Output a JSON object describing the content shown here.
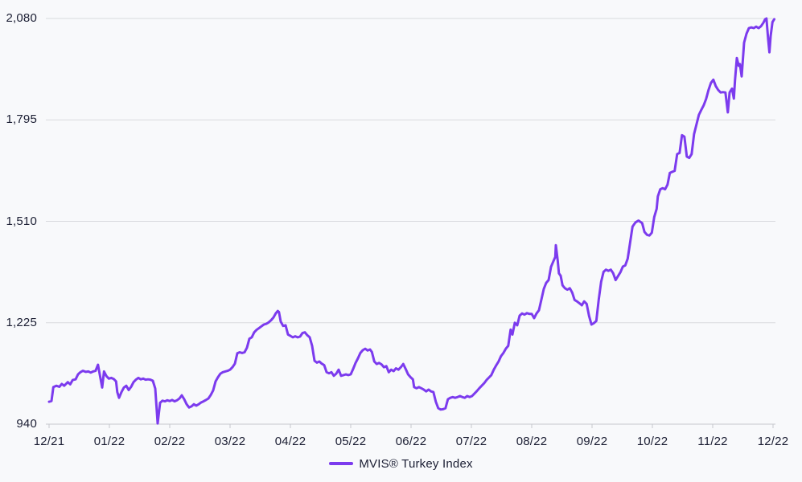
{
  "colors": {
    "line": "#7c3bee",
    "grid": "#d9dade",
    "axis": "#c6c8cc",
    "text": "#1b1e33",
    "background": "#f8f9fb"
  },
  "chart_data": {
    "type": "line",
    "title": "",
    "x_axis": {
      "tick_labels": [
        "12/21",
        "01/22",
        "02/22",
        "03/22",
        "04/22",
        "05/22",
        "06/22",
        "07/22",
        "08/22",
        "09/22",
        "10/22",
        "11/22",
        "12/22"
      ],
      "unit": "month"
    },
    "y_axis": {
      "ticks": [
        940,
        1225,
        1510,
        1795,
        2080
      ],
      "tick_labels": [
        "940",
        "1,225",
        "1,510",
        "1,795",
        "2,080"
      ],
      "range": [
        940,
        2080
      ]
    },
    "grid": {
      "horizontal": true,
      "vertical": false
    },
    "legend": {
      "position": "bottom-center",
      "items": [
        {
          "label": "MVIS® Turkey Index",
          "color": "#7c3bee"
        }
      ]
    },
    "series": [
      {
        "name": "MVIS® Turkey Index",
        "color": "#7c3bee",
        "points": [
          [
            0,
            1003
          ],
          [
            0.04,
            1005
          ],
          [
            0.07,
            1044
          ],
          [
            0.12,
            1048
          ],
          [
            0.17,
            1045
          ],
          [
            0.21,
            1053
          ],
          [
            0.25,
            1048
          ],
          [
            0.31,
            1058
          ],
          [
            0.35,
            1052
          ],
          [
            0.39,
            1064
          ],
          [
            0.44,
            1066
          ],
          [
            0.48,
            1080
          ],
          [
            0.52,
            1086
          ],
          [
            0.56,
            1090
          ],
          [
            0.61,
            1087
          ],
          [
            0.65,
            1088
          ],
          [
            0.69,
            1085
          ],
          [
            0.73,
            1088
          ],
          [
            0.77,
            1090
          ],
          [
            0.81,
            1107
          ],
          [
            0.85,
            1070
          ],
          [
            0.88,
            1043
          ],
          [
            0.91,
            1088
          ],
          [
            0.95,
            1075
          ],
          [
            0.99,
            1068
          ],
          [
            1.03,
            1070
          ],
          [
            1.07,
            1067
          ],
          [
            1.11,
            1060
          ],
          [
            1.13,
            1030
          ],
          [
            1.16,
            1014
          ],
          [
            1.2,
            1030
          ],
          [
            1.24,
            1043
          ],
          [
            1.28,
            1048
          ],
          [
            1.32,
            1036
          ],
          [
            1.36,
            1045
          ],
          [
            1.4,
            1058
          ],
          [
            1.44,
            1065
          ],
          [
            1.48,
            1070
          ],
          [
            1.52,
            1066
          ],
          [
            1.56,
            1068
          ],
          [
            1.6,
            1065
          ],
          [
            1.64,
            1066
          ],
          [
            1.68,
            1065
          ],
          [
            1.72,
            1062
          ],
          [
            1.76,
            1040
          ],
          [
            1.8,
            942
          ],
          [
            1.84,
            1000
          ],
          [
            1.88,
            1006
          ],
          [
            1.92,
            1004
          ],
          [
            1.96,
            1007
          ],
          [
            2,
            1005
          ],
          [
            2.04,
            1008
          ],
          [
            2.08,
            1004
          ],
          [
            2.12,
            1007
          ],
          [
            2.16,
            1012
          ],
          [
            2.2,
            1021
          ],
          [
            2.24,
            1010
          ],
          [
            2.28,
            996
          ],
          [
            2.32,
            987
          ],
          [
            2.36,
            990
          ],
          [
            2.4,
            996
          ],
          [
            2.44,
            992
          ],
          [
            2.48,
            996
          ],
          [
            2.52,
            1001
          ],
          [
            2.56,
            1004
          ],
          [
            2.6,
            1008
          ],
          [
            2.64,
            1012
          ],
          [
            2.68,
            1022
          ],
          [
            2.72,
            1035
          ],
          [
            2.76,
            1060
          ],
          [
            2.8,
            1072
          ],
          [
            2.84,
            1082
          ],
          [
            2.88,
            1086
          ],
          [
            2.92,
            1088
          ],
          [
            2.96,
            1090
          ],
          [
            3,
            1093
          ],
          [
            3.04,
            1100
          ],
          [
            3.08,
            1110
          ],
          [
            3.12,
            1139
          ],
          [
            3.16,
            1142
          ],
          [
            3.2,
            1140
          ],
          [
            3.24,
            1142
          ],
          [
            3.28,
            1155
          ],
          [
            3.32,
            1180
          ],
          [
            3.36,
            1184
          ],
          [
            3.4,
            1198
          ],
          [
            3.44,
            1205
          ],
          [
            3.48,
            1210
          ],
          [
            3.52,
            1215
          ],
          [
            3.56,
            1220
          ],
          [
            3.6,
            1222
          ],
          [
            3.64,
            1226
          ],
          [
            3.68,
            1232
          ],
          [
            3.72,
            1240
          ],
          [
            3.76,
            1252
          ],
          [
            3.79,
            1258
          ],
          [
            3.81,
            1255
          ],
          [
            3.84,
            1228
          ],
          [
            3.88,
            1216
          ],
          [
            3.92,
            1218
          ],
          [
            3.96,
            1192
          ],
          [
            4,
            1188
          ],
          [
            4.04,
            1184
          ],
          [
            4.08,
            1187
          ],
          [
            4.12,
            1184
          ],
          [
            4.16,
            1186
          ],
          [
            4.2,
            1196
          ],
          [
            4.24,
            1198
          ],
          [
            4.28,
            1190
          ],
          [
            4.32,
            1184
          ],
          [
            4.36,
            1160
          ],
          [
            4.4,
            1118
          ],
          [
            4.44,
            1113
          ],
          [
            4.48,
            1116
          ],
          [
            4.52,
            1110
          ],
          [
            4.56,
            1106
          ],
          [
            4.6,
            1086
          ],
          [
            4.64,
            1083
          ],
          [
            4.68,
            1086
          ],
          [
            4.72,
            1076
          ],
          [
            4.76,
            1082
          ],
          [
            4.8,
            1093
          ],
          [
            4.84,
            1076
          ],
          [
            4.88,
            1078
          ],
          [
            4.92,
            1080
          ],
          [
            4.96,
            1078
          ],
          [
            5,
            1080
          ],
          [
            5.04,
            1095
          ],
          [
            5.08,
            1112
          ],
          [
            5.12,
            1125
          ],
          [
            5.16,
            1140
          ],
          [
            5.2,
            1148
          ],
          [
            5.24,
            1152
          ],
          [
            5.28,
            1147
          ],
          [
            5.32,
            1150
          ],
          [
            5.35,
            1143
          ],
          [
            5.39,
            1116
          ],
          [
            5.43,
            1109
          ],
          [
            5.47,
            1112
          ],
          [
            5.51,
            1108
          ],
          [
            5.55,
            1100
          ],
          [
            5.59,
            1103
          ],
          [
            5.63,
            1086
          ],
          [
            5.67,
            1093
          ],
          [
            5.71,
            1089
          ],
          [
            5.75,
            1097
          ],
          [
            5.79,
            1093
          ],
          [
            5.83,
            1100
          ],
          [
            5.87,
            1109
          ],
          [
            5.91,
            1095
          ],
          [
            5.95,
            1080
          ],
          [
            5.99,
            1072
          ],
          [
            6.03,
            1066
          ],
          [
            6.05,
            1044
          ],
          [
            6.09,
            1041
          ],
          [
            6.13,
            1044
          ],
          [
            6.17,
            1041
          ],
          [
            6.21,
            1037
          ],
          [
            6.25,
            1032
          ],
          [
            6.29,
            1037
          ],
          [
            6.33,
            1032
          ],
          [
            6.37,
            1030
          ],
          [
            6.41,
            1003
          ],
          [
            6.45,
            985
          ],
          [
            6.49,
            981
          ],
          [
            6.53,
            982
          ],
          [
            6.57,
            985
          ],
          [
            6.61,
            1010
          ],
          [
            6.65,
            1014
          ],
          [
            6.69,
            1016
          ],
          [
            6.73,
            1014
          ],
          [
            6.77,
            1016
          ],
          [
            6.81,
            1019
          ],
          [
            6.85,
            1016
          ],
          [
            6.89,
            1014
          ],
          [
            6.93,
            1019
          ],
          [
            6.97,
            1016
          ],
          [
            7.01,
            1019
          ],
          [
            7.05,
            1026
          ],
          [
            7.09,
            1033
          ],
          [
            7.13,
            1041
          ],
          [
            7.17,
            1048
          ],
          [
            7.21,
            1055
          ],
          [
            7.25,
            1064
          ],
          [
            7.29,
            1071
          ],
          [
            7.33,
            1078
          ],
          [
            7.37,
            1093
          ],
          [
            7.41,
            1105
          ],
          [
            7.45,
            1116
          ],
          [
            7.49,
            1131
          ],
          [
            7.53,
            1140
          ],
          [
            7.57,
            1152
          ],
          [
            7.61,
            1160
          ],
          [
            7.65,
            1206
          ],
          [
            7.68,
            1192
          ],
          [
            7.72,
            1225
          ],
          [
            7.76,
            1218
          ],
          [
            7.8,
            1245
          ],
          [
            7.84,
            1251
          ],
          [
            7.88,
            1248
          ],
          [
            7.92,
            1252
          ],
          [
            7.96,
            1250
          ],
          [
            8,
            1250
          ],
          [
            8.04,
            1238
          ],
          [
            8.08,
            1251
          ],
          [
            8.12,
            1260
          ],
          [
            8.16,
            1290
          ],
          [
            8.2,
            1320
          ],
          [
            8.24,
            1337
          ],
          [
            8.28,
            1345
          ],
          [
            8.32,
            1382
          ],
          [
            8.36,
            1398
          ],
          [
            8.39,
            1410
          ],
          [
            8.4,
            1443
          ],
          [
            8.43,
            1400
          ],
          [
            8.45,
            1364
          ],
          [
            8.48,
            1357
          ],
          [
            8.51,
            1330
          ],
          [
            8.55,
            1322
          ],
          [
            8.59,
            1318
          ],
          [
            8.63,
            1322
          ],
          [
            8.67,
            1310
          ],
          [
            8.71,
            1289
          ],
          [
            8.75,
            1285
          ],
          [
            8.79,
            1280
          ],
          [
            8.83,
            1274
          ],
          [
            8.87,
            1285
          ],
          [
            8.91,
            1278
          ],
          [
            8.95,
            1244
          ],
          [
            8.99,
            1220
          ],
          [
            9.03,
            1224
          ],
          [
            9.07,
            1230
          ],
          [
            9.11,
            1290
          ],
          [
            9.15,
            1340
          ],
          [
            9.19,
            1368
          ],
          [
            9.23,
            1374
          ],
          [
            9.27,
            1371
          ],
          [
            9.31,
            1374
          ],
          [
            9.35,
            1364
          ],
          [
            9.39,
            1345
          ],
          [
            9.43,
            1356
          ],
          [
            9.47,
            1367
          ],
          [
            9.51,
            1383
          ],
          [
            9.55,
            1386
          ],
          [
            9.59,
            1405
          ],
          [
            9.63,
            1450
          ],
          [
            9.67,
            1495
          ],
          [
            9.72,
            1507
          ],
          [
            9.77,
            1512
          ],
          [
            9.83,
            1505
          ],
          [
            9.87,
            1480
          ],
          [
            9.91,
            1472
          ],
          [
            9.95,
            1470
          ],
          [
            9.99,
            1478
          ],
          [
            10.03,
            1522
          ],
          [
            10.07,
            1545
          ],
          [
            10.09,
            1580
          ],
          [
            10.13,
            1600
          ],
          [
            10.17,
            1603
          ],
          [
            10.21,
            1600
          ],
          [
            10.25,
            1613
          ],
          [
            10.29,
            1646
          ],
          [
            10.33,
            1649
          ],
          [
            10.37,
            1652
          ],
          [
            10.41,
            1699
          ],
          [
            10.45,
            1702
          ],
          [
            10.49,
            1752
          ],
          [
            10.53,
            1748
          ],
          [
            10.57,
            1692
          ],
          [
            10.61,
            1688
          ],
          [
            10.65,
            1699
          ],
          [
            10.69,
            1755
          ],
          [
            10.73,
            1782
          ],
          [
            10.77,
            1809
          ],
          [
            10.81,
            1823
          ],
          [
            10.85,
            1836
          ],
          [
            10.89,
            1854
          ],
          [
            10.93,
            1879
          ],
          [
            10.97,
            1899
          ],
          [
            11.01,
            1908
          ],
          [
            11.05,
            1890
          ],
          [
            11.09,
            1879
          ],
          [
            11.13,
            1872
          ],
          [
            11.17,
            1873
          ],
          [
            11.21,
            1872
          ],
          [
            11.25,
            1816
          ],
          [
            11.28,
            1872
          ],
          [
            11.32,
            1883
          ],
          [
            11.35,
            1855
          ],
          [
            11.37,
            1906
          ],
          [
            11.4,
            1969
          ],
          [
            11.43,
            1947
          ],
          [
            11.45,
            1952
          ],
          [
            11.48,
            1917
          ],
          [
            11.52,
            2012
          ],
          [
            11.56,
            2037
          ],
          [
            11.6,
            2053
          ],
          [
            11.64,
            2055
          ],
          [
            11.68,
            2053
          ],
          [
            11.72,
            2057
          ],
          [
            11.76,
            2053
          ],
          [
            11.8,
            2058
          ],
          [
            11.84,
            2068
          ],
          [
            11.87,
            2078
          ],
          [
            11.89,
            2080
          ],
          [
            11.92,
            2020
          ],
          [
            11.94,
            1985
          ],
          [
            11.96,
            2030
          ],
          [
            11.99,
            2070
          ],
          [
            12.02,
            2078
          ]
        ]
      }
    ]
  }
}
